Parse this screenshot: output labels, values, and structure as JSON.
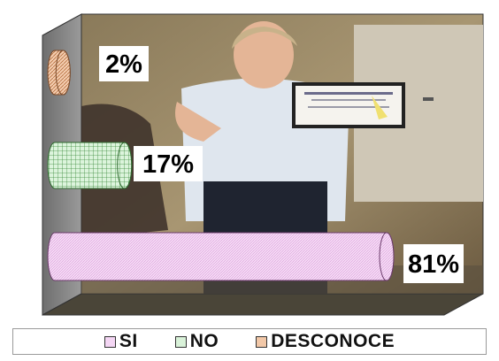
{
  "chart_data": {
    "type": "bar",
    "orientation": "horizontal",
    "categories": [
      "SI",
      "NO",
      "DESCONOCE"
    ],
    "values": [
      81,
      17,
      2
    ],
    "data_labels": [
      "81%",
      "17%",
      "2%"
    ],
    "unit": "%",
    "xlim": [
      0,
      100
    ],
    "title": "",
    "xlabel": "",
    "ylabel": "",
    "grid": false,
    "legend_position": "bottom",
    "series_styles": [
      {
        "category": "SI",
        "color": "#f4d6f4",
        "edge": "#6a3a6a",
        "pattern": "fine-hatch"
      },
      {
        "category": "NO",
        "color": "#d9f2d9",
        "edge": "#2f6a2f",
        "pattern": "grid"
      },
      {
        "category": "DESCONOCE",
        "color": "#f2c8a8",
        "edge": "#7a4a2a",
        "pattern": "diagonal"
      }
    ]
  },
  "legend": {
    "items": [
      {
        "label": "SI",
        "color": "#f4d6f4"
      },
      {
        "label": "NO",
        "color": "#d9f2d9"
      },
      {
        "label": "DESCONOCE",
        "color": "#f2c8a8"
      }
    ]
  },
  "background": {
    "image_description_icon": "photo-woman-holding-certificate-icon"
  }
}
